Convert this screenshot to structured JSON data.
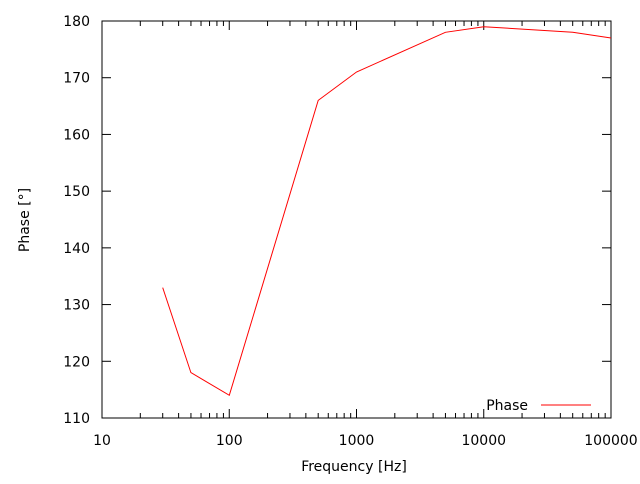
{
  "chart_data": {
    "type": "line",
    "title": "",
    "xlabel": "Frequency [Hz]",
    "ylabel": "Phase [°]",
    "xscale": "log",
    "xlim": [
      10,
      100000
    ],
    "ylim": [
      110,
      180
    ],
    "xticks": [
      "10",
      "100",
      "1000",
      "10000",
      "100000"
    ],
    "yticks": [
      "110",
      "120",
      "130",
      "140",
      "150",
      "160",
      "170",
      "180"
    ],
    "grid": false,
    "legend_position": "bottom-right",
    "series": [
      {
        "name": "Phase",
        "color": "#ff0000",
        "x": [
          30,
          50,
          100,
          500,
          1000,
          5000,
          10000,
          50000,
          100000
        ],
        "y": [
          133,
          118,
          114,
          166,
          171,
          178,
          179,
          178,
          177
        ]
      }
    ]
  }
}
